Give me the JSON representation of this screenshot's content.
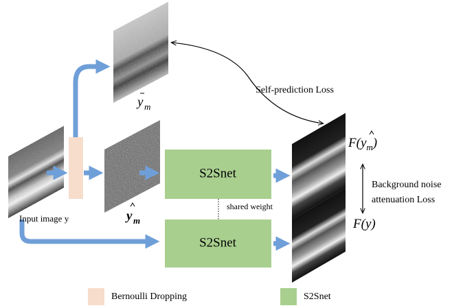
{
  "diagram": {
    "input_label": "Input image y",
    "bernoulli_label": "Bernoulli Dropping",
    "net_top": "S2Snet",
    "net_bottom": "S2Snet",
    "shared": "shared weight",
    "self_loss": "Self-prediction Loss",
    "bg_loss": [
      "Background noise",
      "attenuation Loss"
    ],
    "legend": [
      {
        "label": "Bernoulli Dropping"
      },
      {
        "label": "S2Snet"
      }
    ],
    "y_tilde": {
      "var": "y",
      "sub": "m"
    },
    "y_hat": {
      "var": "y",
      "sub": "m"
    },
    "f_hat": {
      "prefix": "F(",
      "var": "y",
      "sub": "m",
      "suffix": ")"
    },
    "f_y": {
      "prefix": "F(",
      "var": "y",
      "suffix": ")"
    }
  }
}
